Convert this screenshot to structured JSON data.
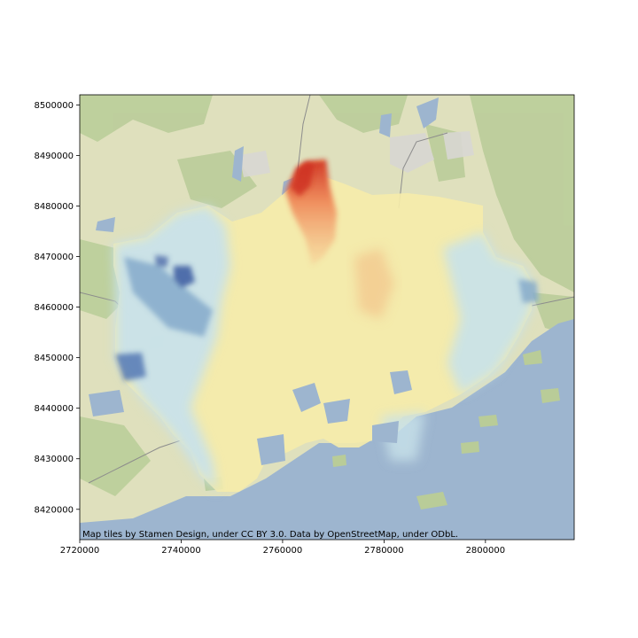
{
  "map": {
    "xlim": [
      2720000,
      2817500
    ],
    "ylim": [
      8414000,
      8502000
    ],
    "x_ticks": [
      {
        "value": 2720000,
        "label": "2720000"
      },
      {
        "value": 2740000,
        "label": "2740000"
      },
      {
        "value": 2760000,
        "label": "2760000"
      },
      {
        "value": 2780000,
        "label": "2780000"
      },
      {
        "value": 2800000,
        "label": "2800000"
      }
    ],
    "y_ticks": [
      {
        "value": 8420000,
        "label": "8420000"
      },
      {
        "value": 8430000,
        "label": "8430000"
      },
      {
        "value": 8440000,
        "label": "8440000"
      },
      {
        "value": 8450000,
        "label": "8450000"
      },
      {
        "value": 8460000,
        "label": "8460000"
      },
      {
        "value": 8470000,
        "label": "8470000"
      },
      {
        "value": 8480000,
        "label": "8480000"
      },
      {
        "value": 8490000,
        "label": "8490000"
      },
      {
        "value": 8500000,
        "label": "8500000"
      }
    ],
    "attribution": "Map tiles by Stamen Design, under CC BY 3.0. Data by OpenStreetMap, under ODbL.",
    "colors": {
      "land": "#dfe0bd",
      "forest": "#b9cc98",
      "water": "#9db5cf",
      "urban": "#d8d7d3",
      "road": "#8c8c8c",
      "ramp_cold": "#3b5aa0",
      "ramp_cool": "#c8e2ea",
      "ramp_neutral": "#f6ecaa",
      "ramp_warm": "#f2b07a",
      "ramp_hot": "#cf3020"
    }
  }
}
